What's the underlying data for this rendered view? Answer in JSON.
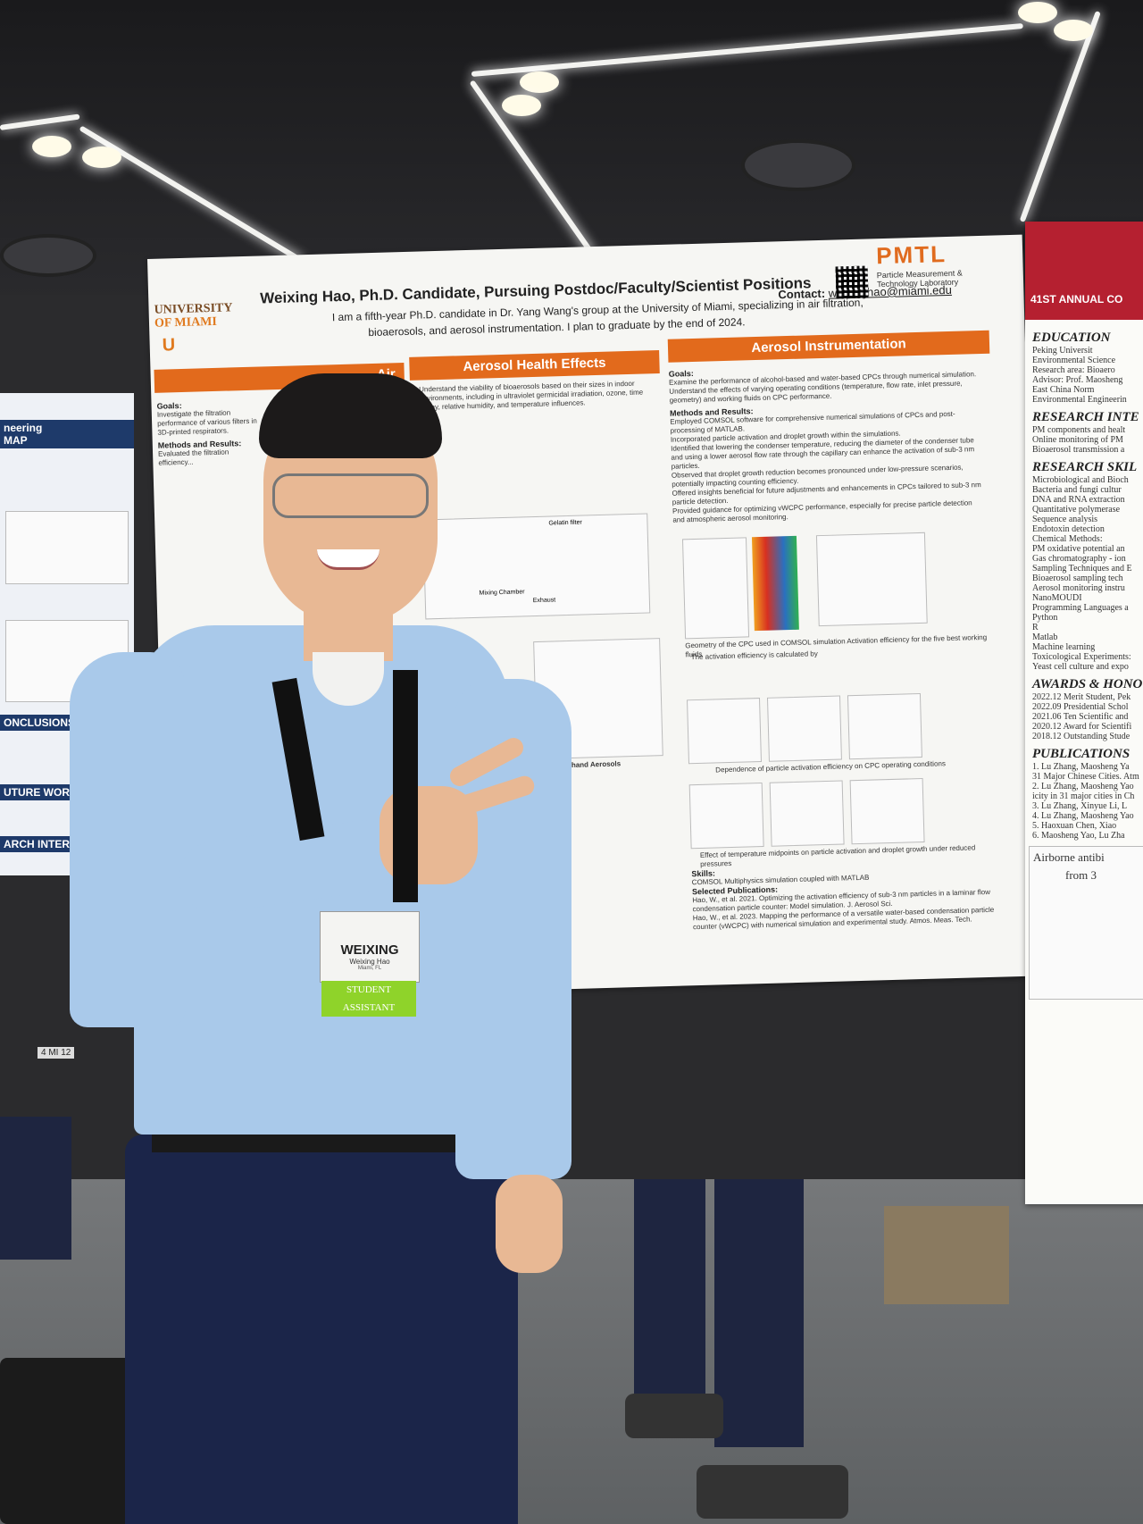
{
  "poster": {
    "title": "Weixing Hao, Ph.D. Candidate, Pursuing Postdoc/Faculty/Scientist Positions",
    "intro_line1": "I am a fifth-year Ph.D. candidate in Dr. Yang Wang's group at the University of Miami, specializing in air filtration,",
    "intro_line2": "bioaerosols, and aerosol instrumentation. I plan to graduate by the end of 2024.",
    "contact_label": "Contact:",
    "contact_email": "weixinghao@miami.edu",
    "university_line1": "UNIVERSITY",
    "university_line2": "OF MIAMI",
    "university_logo": "U",
    "lab_logo": "PMTL",
    "lab_name_line1": "Particle Measurement &",
    "lab_name_line2": "Technology Laboratory",
    "banner_left": "Air",
    "banner_middle": "Aerosol Health Effects",
    "banner_right": "Aerosol Instrumentation",
    "goals_heading": "Goals:",
    "methods_heading": "Methods and Results:",
    "right_goals": [
      "Examine the performance of alcohol-based and water-based CPCs through numerical simulation.",
      "Understand the effects of varying operating conditions (temperature, flow rate, inlet pressure, geometry) and working fluids on CPC performance."
    ],
    "right_methods": [
      "Employed COMSOL software for comprehensive numerical simulations of CPCs and post-processing of MATLAB.",
      "Incorporated particle activation and droplet growth within the simulations.",
      "Identified that lowering the condenser temperature, reducing the diameter of the condenser tube and using a lower aerosol flow rate through the capillary can enhance the activation of sub-3 nm particles.",
      "Observed that droplet growth reduction becomes pronounced under low-pressure scenarios, potentially impacting counting efficiency.",
      "Offered insights beneficial for future adjustments and enhancements in CPCs tailored to sub-3 nm particle detection.",
      "Provided guidance for optimizing vWCPC performance, especially for precise particle detection and atmospheric aerosol monitoring."
    ],
    "fig_caption": "Geometry of the CPC used in COMSOL simulation  Activation efficiency for the five best working fluids",
    "activation_note": "The activation efficiency is calculated by",
    "dependence_caption": "Dependence of particle activation efficiency on CPC operating conditions",
    "temp_caption": "Effect of temperature midpoints on particle activation and droplet growth under reduced pressures",
    "skills_heading": "Skills:",
    "skills_item": "COMSOL Multiphysics simulation coupled with MATLAB",
    "pubs_heading": "Selected Publications:",
    "pub1": "Hao, W., et al. 2021. Optimizing the activation efficiency of sub-3 nm particles in a laminar flow condensation particle counter: Model simulation. J. Aerosol Sci.",
    "pub2": "Hao, W., et al. 2023. Mapping the performance of a versatile water-based condensation particle counter (vWCPC) with numerical simulation and experimental study. Atmos. Meas. Tech.",
    "mid_goals": "Understand the viability of bioaerosols based on their sizes in indoor environments, including in ultraviolet germicidal irradiation, ozone, time decay, relative humidity, and temperature influences.",
    "mid_fig_labels": [
      "Mixing Chamber",
      "Gelatin filter",
      "Exhaust",
      "Secondhand Aerosols"
    ],
    "left_goals": "Investigate the filtration performance of various filters in 3D-printed respirators.",
    "left_method": "Evaluated the filtration efficiency..."
  },
  "badge": {
    "first_name": "WEIXING",
    "full_name": "Weixing Hao",
    "location": "Miami, FL",
    "ribbon": "STUDENT ASSISTANT"
  },
  "right_poster": {
    "conf_line": "41ST ANNUAL CO",
    "sections": [
      {
        "title": "EDUCATION",
        "lines": [
          "Peking Universit",
          "Environmental Science",
          "Research area: Bioaero",
          "Advisor: Prof. Maosheng",
          "East China Norm",
          "Environmental Engineerin"
        ]
      },
      {
        "title": "RESEARCH INTE",
        "lines": [
          "PM components and healt",
          "Online monitoring of PM",
          "Bioaerosol transmission a"
        ]
      },
      {
        "title": "RESEARCH SKIL",
        "lines": [
          "Microbiological and Bioch",
          "Bacteria and fungi cultur",
          "DNA and RNA extraction",
          "Quantitative polymerase",
          "Sequence analysis",
          "Endotoxin detection",
          "Chemical Methods:",
          "PM oxidative potential an",
          "Gas chromatography - ion",
          "Sampling Techniques and E",
          "Bioaerosol sampling tech",
          "Aerosol monitoring instru",
          "NanoMOUDI",
          "Programming Languages a",
          "Python",
          "R",
          "Matlab",
          "Machine learning",
          "Toxicological Experiments:",
          "Yeast cell culture and expo"
        ]
      },
      {
        "title": "AWARDS & HONO",
        "lines": [
          "2022.12  Merit Student, Pek",
          "2022.09  Presidential Schol",
          "2021.06  Ten Scientific and",
          "2020.12  Award for Scientifi",
          "2018.12  Outstanding Stude"
        ]
      },
      {
        "title": "PUBLICATIONS",
        "lines": [
          "1. Lu Zhang, Maosheng Ya",
          "31 Major Chinese Cities. Atm",
          "2. Lu Zhang, Maosheng Yao",
          "icity in 31 major cities in Ch",
          "3. Lu Zhang, Xinyue Li, L",
          "4. Lu Zhang, Maosheng Yao",
          "5. Haoxuan Chen, Xiao",
          "6. Maosheng Yao, Lu Zha"
        ]
      }
    ],
    "bottom_title_line1": "Airborne antibi",
    "bottom_title_line2": "from 3"
  },
  "left_poster": {
    "header_line1": "neering",
    "header_line2": "MAP",
    "section1": "ONCLUSIONS",
    "section2": "UTURE WORK",
    "section3": "ARCH INTEREST"
  },
  "booth_tag": "4 MI 12",
  "colors": {
    "orange_banner": "#e26a1c",
    "shirt": "#a9c9ea",
    "pants": "#1b2549",
    "badge_ribbon": "#8fd32a",
    "conference_red": "#b52030",
    "left_poster_navy": "#1e3a6a"
  }
}
